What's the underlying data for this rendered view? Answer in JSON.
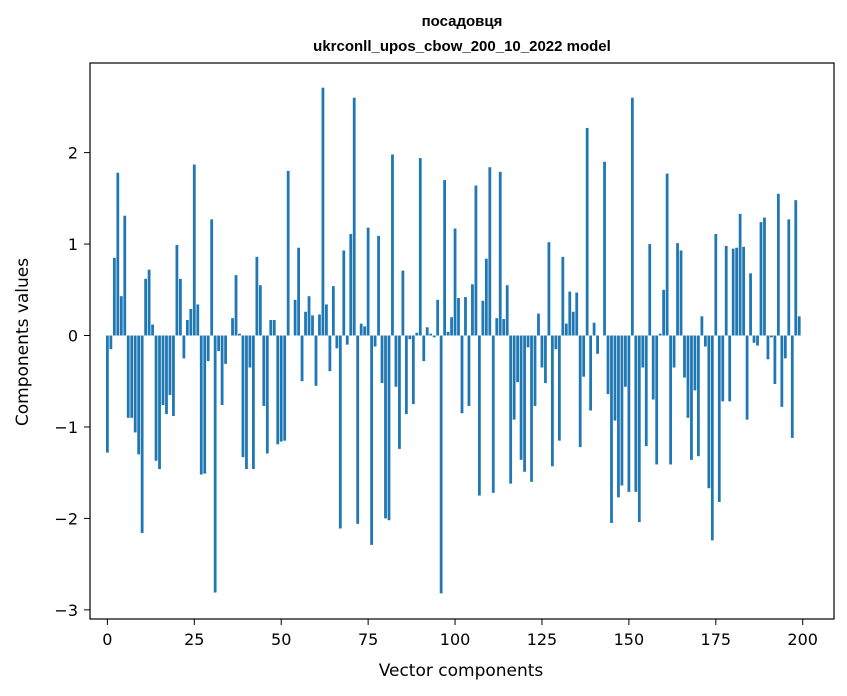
{
  "chart_data": {
    "type": "bar",
    "title_line1": "посадовця",
    "title_line2": "ukrconll_upos_cbow_200_10_2022 model",
    "xlabel": "Vector components",
    "ylabel": "Components values",
    "xlim": [
      -5,
      209
    ],
    "ylim": [
      -3.1,
      2.98
    ],
    "x_ticks": [
      0,
      25,
      50,
      75,
      100,
      125,
      150,
      175,
      200
    ],
    "y_ticks": [
      -3,
      -2,
      -1,
      0,
      1,
      2
    ],
    "y_tick_labels": [
      "−3",
      "−2",
      "−1",
      "0",
      "1",
      "2"
    ],
    "grid": false,
    "bar_color": "#1f77b4",
    "values": [
      -1.28,
      -0.15,
      0.85,
      1.78,
      0.43,
      1.31,
      -0.9,
      -0.9,
      -1.06,
      -1.3,
      -2.16,
      0.62,
      0.72,
      0.12,
      -1.37,
      -1.46,
      -0.76,
      -0.86,
      -0.65,
      -0.88,
      0.99,
      0.62,
      -0.25,
      0.17,
      0.29,
      1.87,
      0.34,
      -1.52,
      -1.51,
      -0.28,
      1.27,
      -2.81,
      -0.17,
      -0.76,
      -0.31,
      0.0,
      0.19,
      0.66,
      0.02,
      -1.33,
      -1.46,
      -0.35,
      -1.46,
      0.86,
      0.55,
      -0.77,
      -1.29,
      0.17,
      0.17,
      -1.19,
      -1.16,
      -1.15,
      1.8,
      0.0,
      0.39,
      0.96,
      -0.5,
      0.26,
      0.43,
      0.22,
      -0.55,
      0.23,
      2.71,
      0.34,
      -0.39,
      0.54,
      -0.14,
      -2.11,
      0.93,
      -0.1,
      1.11,
      2.6,
      -2.06,
      0.13,
      0.1,
      1.18,
      -2.29,
      -0.12,
      1.09,
      -0.52,
      -2.0,
      -2.02,
      1.98,
      -0.56,
      -1.24,
      0.71,
      -0.86,
      -0.04,
      -0.75,
      0.03,
      1.94,
      -0.28,
      0.09,
      0.02,
      -0.02,
      0.39,
      -2.82,
      1.7,
      0.04,
      0.2,
      1.17,
      0.41,
      -0.85,
      0.42,
      -0.77,
      0.56,
      1.64,
      -1.75,
      0.38,
      0.84,
      1.84,
      -1.72,
      0.19,
      1.79,
      0.18,
      0.55,
      -1.62,
      -0.92,
      -0.51,
      -1.36,
      -1.49,
      -0.13,
      -1.6,
      -0.77,
      0.24,
      -0.35,
      -0.52,
      1.02,
      -1.43,
      -0.15,
      -1.15,
      0.86,
      0.13,
      0.48,
      0.26,
      0.47,
      -1.22,
      -0.45,
      2.27,
      -0.82,
      0.14,
      -0.2,
      0.0,
      1.9,
      -0.64,
      -2.05,
      -0.93,
      -1.77,
      -1.64,
      -0.56,
      -1.71,
      2.6,
      -1.71,
      -2.04,
      -0.35,
      -1.21,
      1.0,
      -0.7,
      -1.41,
      0.02,
      0.5,
      1.77,
      -1.41,
      -0.35,
      1.01,
      0.93,
      -0.46,
      -0.9,
      -1.36,
      -0.6,
      -1.32,
      0.21,
      -0.12,
      -1.67,
      -2.24,
      1.11,
      -1.82,
      -0.72,
      0.98,
      -0.72,
      0.95,
      0.96,
      1.33,
      0.97,
      -0.92,
      0.68,
      -0.08,
      -0.11,
      1.24,
      1.29,
      -0.26,
      -0.02,
      -0.53,
      1.55,
      -0.78,
      -0.25,
      1.27,
      -1.12,
      1.48,
      0.21
    ]
  }
}
